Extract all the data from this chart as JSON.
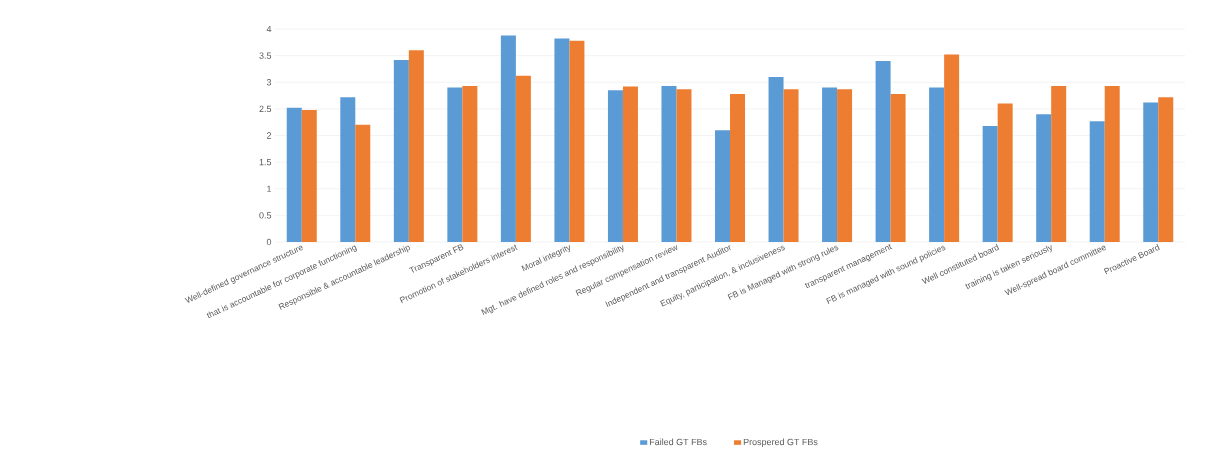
{
  "chart_data": {
    "type": "bar",
    "categories": [
      "Well-defined governance structure",
      "that is accountable for corporate functioning",
      "Responsible & accountable leadership",
      "Transparent FB",
      "Promotion of stakeholders interest",
      "Moral integrity",
      "Mgt. have defined roles and responsibility",
      "Regular compensation review",
      "Independent and transparent Auditor",
      "Equity, participation, & inclusiveness",
      "FB is Managed with strong rules",
      "transparent management",
      "FB is managed with sound policies",
      "Well constituted board",
      "training is taken seriously",
      "Well-spread board committee",
      "Proactive Board"
    ],
    "series": [
      {
        "name": "Failed GT FBs",
        "color": "#5b9bd5",
        "values": [
          2.52,
          2.72,
          3.42,
          2.9,
          3.88,
          3.82,
          2.85,
          2.93,
          2.1,
          3.1,
          2.9,
          3.4,
          2.9,
          2.18,
          2.4,
          2.27,
          2.62
        ]
      },
      {
        "name": "Prospered GT FBs",
        "color": "#ed7d31",
        "values": [
          2.48,
          2.2,
          3.6,
          2.93,
          3.12,
          3.78,
          2.92,
          2.87,
          2.78,
          2.87,
          2.87,
          2.78,
          3.52,
          2.6,
          2.93,
          2.93,
          2.72
        ]
      }
    ],
    "ylim": [
      0,
      4
    ],
    "yticks": [
      0,
      0.5,
      1,
      1.5,
      2,
      2.5,
      3,
      3.5,
      4
    ],
    "grid": "y",
    "legend": "bottom"
  }
}
